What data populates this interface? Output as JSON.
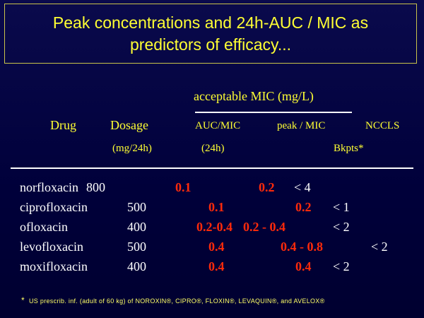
{
  "title": {
    "line1": "Peak concentrations and 24h-AUC / MIC as",
    "line2": "predictors of efficacy..."
  },
  "headers": {
    "acceptable_mic": "acceptable MIC (mg/L)",
    "drug": "Drug",
    "dosage": "Dosage",
    "dosage_unit": "(mg/24h)",
    "auc_mic": "AUC/MIC",
    "auc_unit": "(24h)",
    "peak_mic": "peak / MIC",
    "nccls": "NCCLS",
    "bkpts": "Bkpts*"
  },
  "rows": [
    {
      "drug": "norfloxacin",
      "dose": "800",
      "auc": "0.1",
      "peak": "0.2",
      "bkpt": "< 4"
    },
    {
      "drug": "ciprofloxacin",
      "dose": "500",
      "auc": "0.1",
      "peak": "0.2",
      "bkpt": "< 1"
    },
    {
      "drug": "ofloxacin",
      "dose": "400",
      "auc": "0.2-0.4",
      "peak": "0.2 - 0.4",
      "bkpt": "< 2"
    },
    {
      "drug": "levofloxacin",
      "dose": "500",
      "auc": "0.4",
      "peak": "0.4 - 0.8",
      "bkpt": "< 2"
    },
    {
      "drug": "moxifloxacin",
      "dose": "400",
      "auc": "0.4",
      "peak": "0.4",
      "bkpt": "< 2"
    }
  ],
  "footnote": {
    "star": "*",
    "text": "US prescrib. inf. (adult of 60 kg) of NOROXIN®, CIPRO®, FLOXIN®, LEVAQUIN®, and AVELOX®"
  }
}
